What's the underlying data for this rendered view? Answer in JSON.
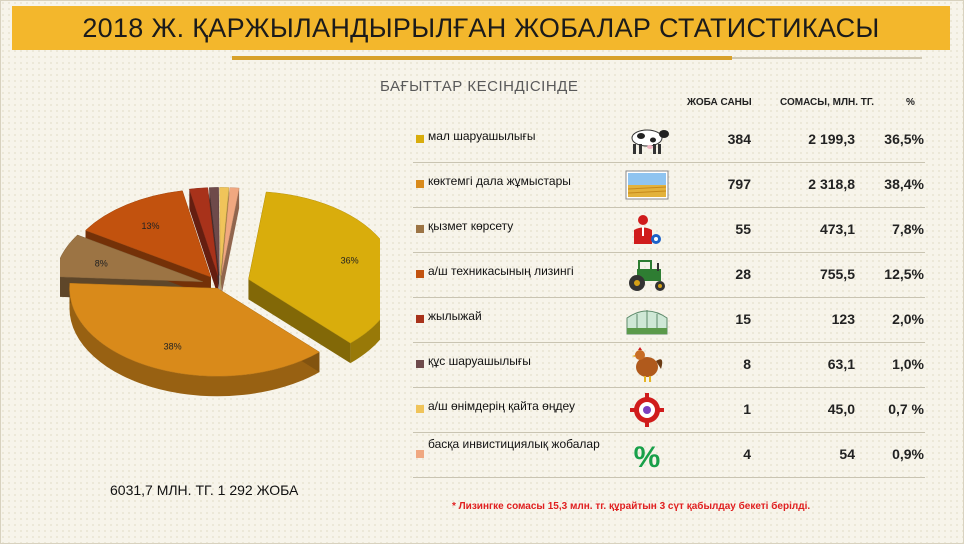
{
  "title": "2018 Ж. ҚАРЖЫЛАНДЫРЫЛҒАН ЖОБАЛАР СТАТИСТИКАСЫ",
  "subtitle": "БАҒЫТТАР КЕСІНДІСІНДЕ",
  "headers": {
    "count": "ЖОБА САНЫ",
    "sum": "СОМАСЫ, МЛН. ТГ.",
    "pct": "%"
  },
  "rows": [
    {
      "label": "мал шаруашылығы",
      "count": "384",
      "sum": "2 199,3",
      "pct": "36,5%",
      "color": "#d9ad0c",
      "icon": "cow-icon"
    },
    {
      "label": "көктемгі дала жұмыстары",
      "count": "797",
      "sum": "2 318,8",
      "pct": "38,4%",
      "color": "#d98a1a",
      "icon": "field-icon"
    },
    {
      "label": "қызмет көрсету",
      "count": "55",
      "sum": "473,1",
      "pct": "7,8%",
      "color": "#9c7444",
      "icon": "service-person-icon"
    },
    {
      "label": "а/ш техникасының лизингі",
      "count": "28",
      "sum": "755,5",
      "pct": "12,5%",
      "color": "#c2520e",
      "icon": "tractor-icon"
    },
    {
      "label": "жылыжай",
      "count": "15",
      "sum": "123",
      "pct": "2,0%",
      "color": "#a8321a",
      "icon": "greenhouse-icon"
    },
    {
      "label": "құс шаруашылығы",
      "count": "8",
      "sum": "63,1",
      "pct": "1,0%",
      "color": "#6e4a4a",
      "icon": "chicken-icon"
    },
    {
      "label": "а/ш өнімдерің қайта өңдеу",
      "count": "1",
      "sum": "45,0",
      "pct": "0,7 %",
      "color": "#f0c45a",
      "icon": "processing-gear-icon"
    },
    {
      "label": "басқа инвистициялық жобалар",
      "count": "4",
      "sum": "54",
      "pct": "0,9%",
      "color": "#f0a880",
      "icon": "percent-icon"
    }
  ],
  "total": "6031,7 МЛН. ТГ. 1 292 ЖОБА",
  "note": "* Лизингке  сомасы 15,3 млн. тг.  құрайтын 3 сүт қабылдау бекеті берілді.",
  "chart_data": {
    "type": "pie",
    "categories": [
      "мал шаруашылығы",
      "көктемгі дала жұмыстары",
      "қызмет көрсету",
      "а/ш техникасының лизингі",
      "жылыжай",
      "құс шаруашылығы",
      "а/ш өнімдерің қайта өңдеу",
      "басқа инвистициялық жобалар"
    ],
    "values": [
      36,
      38,
      8,
      13,
      2,
      1,
      1,
      1
    ],
    "labels": [
      "36%",
      "38%",
      "8%",
      "13%",
      "2%",
      "1%",
      "1%",
      "1%"
    ],
    "colors": [
      "#d9ad0c",
      "#d98a1a",
      "#9c7444",
      "#c2520e",
      "#a8321a",
      "#6e4a4a",
      "#f0c45a",
      "#f0a880"
    ]
  }
}
